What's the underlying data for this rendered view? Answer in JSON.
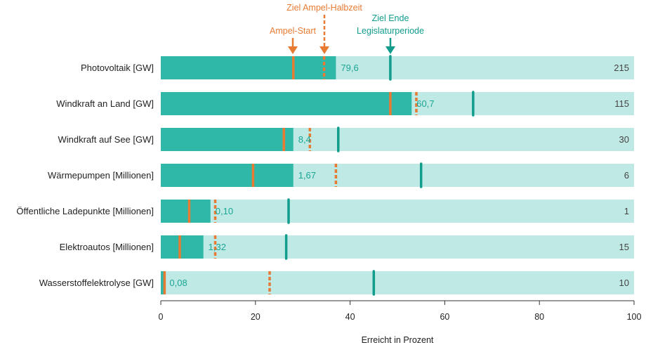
{
  "chart_data": {
    "type": "bar",
    "orientation": "horizontal",
    "xlabel": "Erreicht in Prozent",
    "xlim": [
      0,
      100
    ],
    "xticks": [
      0,
      20,
      40,
      60,
      80,
      100
    ],
    "categories": [
      "Photovoltaik [GW]",
      "Windkraft an Land [GW]",
      "Windkraft auf See [GW]",
      "Wärmepumpen [Millionen]",
      "Öffentliche Ladepunkte [Millionen]",
      "Elektroautos [Millionen]",
      "Wasserstoffelektrolyse [GW]"
    ],
    "achieved_percent": [
      37,
      53,
      28,
      28,
      10.5,
      9,
      0.8
    ],
    "achieved_labels": [
      "79,6",
      "60,7",
      "8,4",
      "1,67",
      "0,10",
      "1,32",
      "0,08"
    ],
    "target_values": [
      "215",
      "115",
      "30",
      "6",
      "1",
      "15",
      "10"
    ],
    "markers": {
      "ampel_start": [
        28,
        48.5,
        26,
        19.5,
        6,
        4,
        0.8
      ],
      "ziel_ampel_halbzeit": [
        34.5,
        54,
        31.5,
        37,
        11.5,
        11.5,
        23
      ],
      "ziel_ende_legislaturperiode": [
        48.5,
        66,
        37.5,
        55,
        27,
        26.5,
        45
      ]
    },
    "annotations": {
      "ampel_start": "Ampel-Start",
      "ziel_ampel_halbzeit": "Ziel Ampel-Halbzeit",
      "ziel_ende_line1": "Ziel Ende",
      "ziel_ende_line2": "Legislaturperiode"
    },
    "colors": {
      "achieved": "#2fb8a8",
      "background": "#bfe9e4",
      "orange": "#e87b34",
      "teal_marker": "#119c8c",
      "value_text": "#1aa595",
      "text": "#222222",
      "axis": "#333333"
    },
    "grid": false
  }
}
